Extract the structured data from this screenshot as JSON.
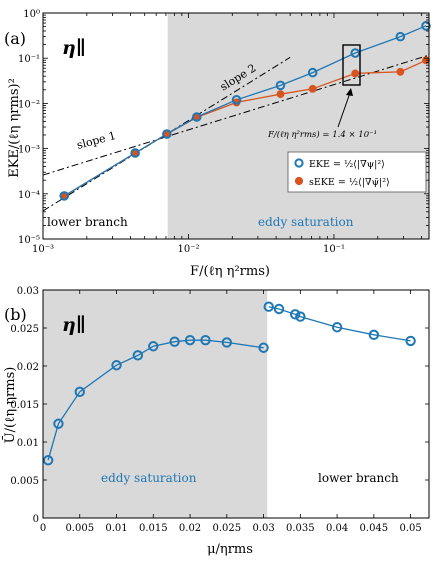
{
  "colors": {
    "blue": "#1f77b4",
    "orange": "#d9531e",
    "shade": "#d9d9d9",
    "dashdot": "#000000"
  },
  "chart_data": [
    {
      "panel_label": "(a)",
      "type": "line",
      "title": "",
      "symbol": "η∥",
      "xlabel": "F/(ℓη η²rms)",
      "ylabel": "EKE/(ℓη ηrms)²",
      "xscale": "log",
      "yscale": "log",
      "xlim": [
        0.001,
        0.45
      ],
      "ylim": [
        1e-05,
        1
      ],
      "x_ticks": [
        {
          "value": 0.001,
          "label": "10⁻³"
        },
        {
          "value": 0.01,
          "label": "10⁻²"
        },
        {
          "value": 0.1,
          "label": "10⁻¹"
        }
      ],
      "y_ticks": [
        {
          "value": 1e-05,
          "label": "10⁻⁵"
        },
        {
          "value": 0.0001,
          "label": "10⁻⁴"
        },
        {
          "value": 0.001,
          "label": "10⁻³"
        },
        {
          "value": 0.01,
          "label": "10⁻²"
        },
        {
          "value": 0.1,
          "label": "10⁻¹"
        },
        {
          "value": 1,
          "label": "10⁰"
        }
      ],
      "shaded_region": {
        "x_start": 0.0072,
        "x_end": 0.45
      },
      "series": [
        {
          "name": "EKE = ½⟨|∇ψ|²⟩",
          "color": "#1f77b4",
          "marker": "open-circle",
          "x": [
            0.0014,
            0.0043,
            0.0071,
            0.0114,
            0.0214,
            0.0429,
            0.0714,
            0.14,
            0.286,
            0.429
          ],
          "y": [
            9e-05,
            0.0008,
            0.0021,
            0.005,
            0.012,
            0.025,
            0.048,
            0.13,
            0.3,
            0.52
          ]
        },
        {
          "name": "sEKE = ½⟨|∇ψ̃|²⟩",
          "color": "#d9531e",
          "marker": "filled-circle",
          "x": [
            0.0014,
            0.0043,
            0.0071,
            0.0114,
            0.0214,
            0.0429,
            0.0714,
            0.14,
            0.286,
            0.429
          ],
          "y": [
            9e-05,
            0.0008,
            0.0021,
            0.0049,
            0.0105,
            0.016,
            0.021,
            0.046,
            0.05,
            0.09
          ]
        }
      ],
      "reference_lines": [
        {
          "label": "slope 1",
          "slope": 1,
          "x": [
            0.001,
            0.45
          ],
          "y": [
            0.00026,
            0.117
          ]
        },
        {
          "label": "slope 2",
          "slope": 2,
          "x": [
            0.001,
            0.05
          ],
          "y": [
            4.18e-05,
            0.1045
          ]
        }
      ],
      "annotations": [
        {
          "text": "slope 1"
        },
        {
          "text": "slope 2"
        },
        {
          "text": "F/(ℓη η²rms) = 1.4 × 10⁻¹"
        },
        {
          "text": "lower branch"
        },
        {
          "text": "eddy saturation"
        }
      ],
      "highlight_box": {
        "x": 0.14
      },
      "legend_position": "lower-right"
    },
    {
      "panel_label": "(b)",
      "type": "line",
      "title": "",
      "symbol": "η∥",
      "xlabel": "μ/ηrms",
      "ylabel": "Ū/(ℓη ηrms)",
      "xlim": [
        0,
        0.0525
      ],
      "ylim": [
        0,
        0.03
      ],
      "x_ticks": [
        0,
        0.005,
        0.01,
        0.015,
        0.02,
        0.025,
        0.03,
        0.035,
        0.04,
        0.045,
        0.05
      ],
      "y_ticks": [
        0,
        0.005,
        0.01,
        0.015,
        0.02,
        0.025,
        0.03
      ],
      "shaded_region": {
        "x_start": 0,
        "x_end": 0.0305
      },
      "series": [
        {
          "name": "",
          "color": "#1f77b4",
          "marker": "open-circle",
          "segments": [
            {
              "x": [
                0.0007,
                0.0021,
                0.005,
                0.01,
                0.0129,
                0.015,
                0.0179,
                0.02,
                0.0221,
                0.025,
                0.03
              ],
              "y": [
                0.0076,
                0.0124,
                0.0166,
                0.0201,
                0.0214,
                0.0226,
                0.0232,
                0.0234,
                0.0234,
                0.0231,
                0.0224
              ]
            },
            {
              "x": [
                0.0307,
                0.0321,
                0.0343,
                0.035,
                0.04,
                0.045,
                0.05
              ],
              "y": [
                0.0278,
                0.0275,
                0.0268,
                0.0265,
                0.0251,
                0.0241,
                0.0233
              ]
            }
          ]
        }
      ],
      "annotations": [
        {
          "text": "eddy saturation"
        },
        {
          "text": "lower branch"
        }
      ]
    }
  ]
}
